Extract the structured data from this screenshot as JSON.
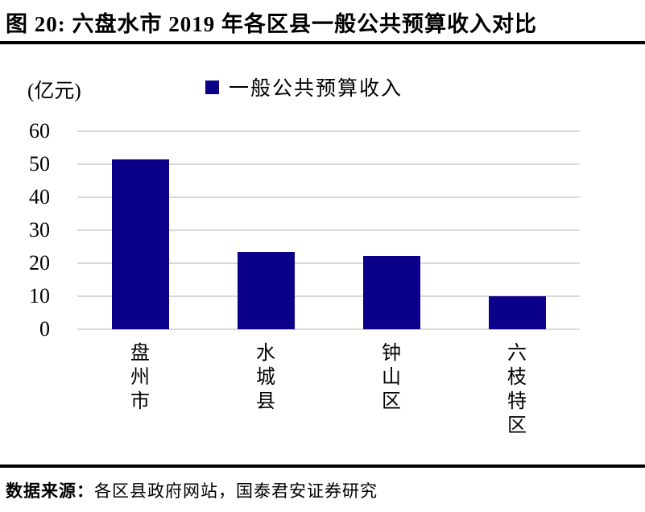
{
  "header": {
    "title": "图 20:  六盘水市 2019 年各区县一般公共预算收入对比"
  },
  "chart": {
    "unit_label": "(亿元)",
    "legend_label": "一般公共预算收入"
  },
  "chart_data": {
    "type": "bar",
    "title": "六盘水市 2019 年各区县一般公共预算收入对比",
    "categories": [
      "盘州市",
      "水城县",
      "钟山区",
      "六枝特区"
    ],
    "series": [
      {
        "name": "一般公共预算收入",
        "values": [
          51.5,
          23.4,
          22.1,
          10.0
        ]
      }
    ],
    "unit": "亿元",
    "ylabel": "(亿元)",
    "ylim": [
      0,
      60
    ],
    "yticks": [
      0,
      10,
      20,
      30,
      40,
      50,
      60
    ],
    "grid": true,
    "legend_position": "top",
    "colors": {
      "bar": "#0A0089",
      "gridline": "#D9D9D9",
      "text": "#000000"
    }
  },
  "footer": {
    "source_label": "数据来源：",
    "source_text": "各区县政府网站，国泰君安证券研究"
  }
}
